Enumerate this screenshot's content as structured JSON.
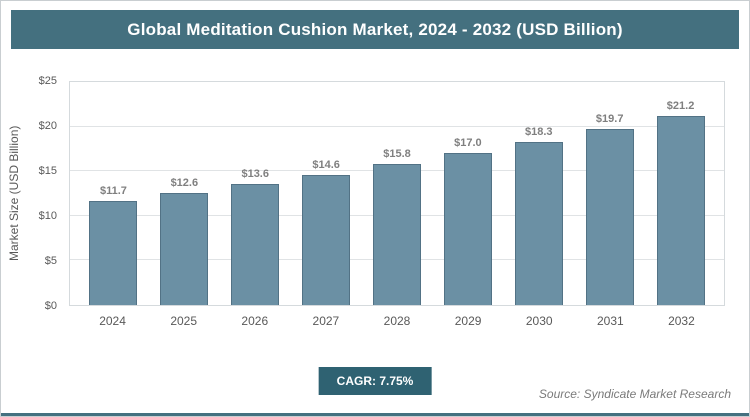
{
  "title": "Global Meditation Cushion Market, 2024 - 2032 (USD Billion)",
  "chart_data": {
    "type": "bar",
    "title": "Global Meditation Cushion Market, 2024 - 2032 (USD Billion)",
    "categories": [
      "2024",
      "2025",
      "2026",
      "2027",
      "2028",
      "2029",
      "2030",
      "2031",
      "2032"
    ],
    "values": [
      11.7,
      12.6,
      13.6,
      14.6,
      15.8,
      17.0,
      18.3,
      19.7,
      21.2
    ],
    "value_labels": [
      "$11.7",
      "$12.6",
      "$13.6",
      "$14.6",
      "$15.8",
      "$17.0",
      "$18.3",
      "$19.7",
      "$21.2"
    ],
    "xlabel": "",
    "ylabel": "Market Size (USD Billion)",
    "ylim": [
      0,
      25
    ],
    "yticks": [
      {
        "value": 0,
        "label": "$0"
      },
      {
        "value": 5,
        "label": "$5"
      },
      {
        "value": 10,
        "label": "$10"
      },
      {
        "value": 15,
        "label": "$15"
      },
      {
        "value": 20,
        "label": "$20"
      },
      {
        "value": 25,
        "label": "$25"
      }
    ],
    "grid": true,
    "legend": false,
    "bar_color": "#6b90a4",
    "bar_border_color": "#527285"
  },
  "footer": {
    "cagr_label": "CAGR: 7.75%",
    "source": "Source: Syndicate Market Research"
  },
  "colors": {
    "header_bg": "#44707f",
    "header_text": "#ffffff",
    "badge_bg": "#2f6272",
    "accent_line": "#44707f",
    "gridline": "#e0e3e5",
    "axis_text": "#595959",
    "value_label_text": "#7f7f7f"
  }
}
